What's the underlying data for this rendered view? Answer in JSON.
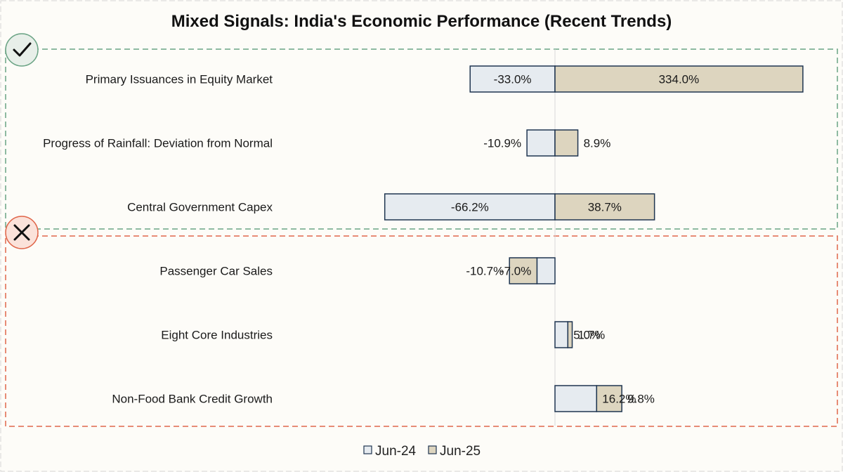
{
  "chart_data": {
    "type": "bar",
    "orientation": "horizontal",
    "title": "Mixed Signals: India's Economic Performance (Recent Trends)",
    "categories": [
      "Primary Issuances in Equity Market",
      "Progress of Rainfall: Deviation from Normal",
      "Central Government Capex",
      "Passenger Car Sales",
      "Eight Core Industries",
      "Non-Food Bank Credit Growth"
    ],
    "series": [
      {
        "name": "Jun-24",
        "color": "#e6ebf0",
        "values": [
          -33.0,
          -10.9,
          -66.2,
          -7.0,
          5.0,
          16.2
        ]
      },
      {
        "name": "Jun-25",
        "color": "#ddd5bf",
        "values": [
          334.0,
          8.9,
          38.7,
          -10.7,
          1.7,
          9.8
        ]
      }
    ],
    "value_labels": [
      [
        "-33.0%",
        "334.0%"
      ],
      [
        "-10.9%",
        "8.9%"
      ],
      [
        "-66.2%",
        "38.7%"
      ],
      [
        "-7.0%",
        "-10.7%"
      ],
      [
        "5.0%",
        "1.7%"
      ],
      [
        "16.2%",
        "9.8%"
      ]
    ],
    "groups": [
      {
        "status": "positive",
        "icon": "checkmark-icon",
        "color": "#6aa384",
        "rows": [
          0,
          1,
          2
        ]
      },
      {
        "status": "negative",
        "icon": "x-mark-icon",
        "color": "#e0664a",
        "rows": [
          3,
          4,
          5
        ]
      }
    ],
    "legend": {
      "position": "bottom-center",
      "entries": [
        "Jun-24",
        "Jun-25"
      ]
    },
    "bar_outline_color": "#1f3550",
    "grid": false
  }
}
